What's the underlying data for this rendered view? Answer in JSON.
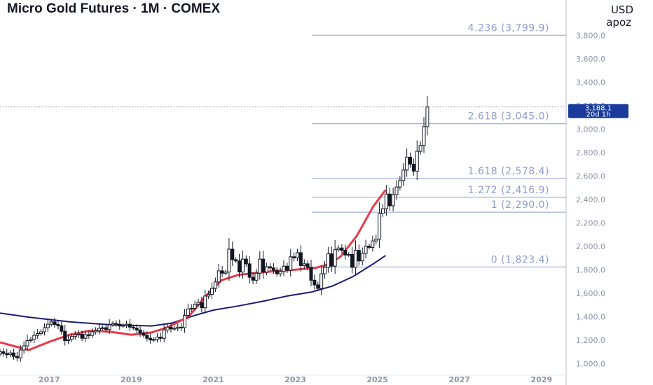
{
  "header": {
    "title": "Micro Gold Futures · 1M · COMEX",
    "currency": "USD",
    "user": "apoz"
  },
  "price_label": {
    "price": "3,188.1",
    "countdown": "20d 1h"
  },
  "colors": {
    "up": "#131722",
    "ema_fast": "#e8394a",
    "ema_slow": "#1c1a7a",
    "fib": "#8e9ccf",
    "price_tag": "#1a3b9c",
    "grid_text": "#8c93a8"
  },
  "chart_data": {
    "type": "candlestick",
    "title": "Micro Gold Futures · 1M · COMEX",
    "y_axis": {
      "min": 900,
      "max": 4100,
      "ticks": [
        "1,000.0",
        "1,200.0",
        "1,400.0",
        "1,600.0",
        "1,800.0",
        "2,000.0",
        "2,200.0",
        "2,400.0",
        "2,600.0",
        "2,800.0",
        "3,000.0",
        "3,200.0",
        "3,400.0",
        "3,600.0",
        "3,800.0"
      ],
      "tick_values": [
        1000,
        1200,
        1400,
        1600,
        1800,
        2000,
        2200,
        2400,
        2600,
        2800,
        3000,
        3200,
        3400,
        3600,
        3800
      ]
    },
    "x_axis": {
      "start": 2015.8,
      "end": 2029.6,
      "ticks": [
        "2017",
        "2019",
        "2021",
        "2023",
        "2025",
        "2027",
        "2029"
      ],
      "tick_values": [
        2017,
        2019,
        2021,
        2023,
        2025,
        2027,
        2029
      ]
    },
    "current_price": 3188.1,
    "fibonacci": [
      {
        "label": "4.236 (3,799.9)",
        "value": 3799.9
      },
      {
        "label": "2.618 (3,045.0)",
        "value": 3045.0
      },
      {
        "label": "1.618 (2,578.4)",
        "value": 2578.4
      },
      {
        "label": "1.272 (2,416.9)",
        "value": 2416.9
      },
      {
        "label": "1 (2,290.0)",
        "value": 2290.0
      },
      {
        "label": "0 (1,823.4)",
        "value": 1823.4
      }
    ],
    "fib_start": 2023.4,
    "closes": [
      1100,
      1085,
      1075,
      1090,
      1060,
      1048,
      1115,
      1150,
      1195,
      1205,
      1240,
      1255,
      1270,
      1305,
      1335,
      1355,
      1332,
      1322,
      1275,
      1195,
      1205,
      1230,
      1245,
      1250,
      1215,
      1245,
      1240,
      1270,
      1280,
      1300,
      1305,
      1290,
      1330,
      1340,
      1335,
      1320,
      1325,
      1335,
      1310,
      1302,
      1285,
      1260,
      1240,
      1215,
      1200,
      1205,
      1225,
      1215,
      1285,
      1310,
      1295,
      1300,
      1310,
      1305,
      1410,
      1465,
      1470,
      1505,
      1520,
      1475,
      1575,
      1590,
      1640,
      1695,
      1790,
      1770,
      1780,
      1975,
      1885,
      1875,
      1780,
      1890,
      1850,
      1735,
      1710,
      1770,
      1890,
      1780,
      1825,
      1815,
      1795,
      1765,
      1785,
      1830,
      1795,
      1910,
      1900,
      1945,
      1835,
      1850,
      1820,
      1710,
      1670,
      1640,
      1765,
      1820,
      1935,
      1830,
      1970,
      1985,
      1965,
      1925,
      1930,
      1820,
      1965,
      1875,
      1940,
      2000,
      1990,
      2045,
      2060,
      2280,
      2320,
      2445,
      2345,
      2440,
      2505,
      2560,
      2650,
      2760,
      2700,
      2640,
      2810,
      2860,
      3020,
      3188
    ],
    "ema_fast": [
      {
        "x": 2015.8,
        "y": 1180
      },
      {
        "x": 2016.5,
        "y": 1115
      },
      {
        "x": 2017.0,
        "y": 1185
      },
      {
        "x": 2017.5,
        "y": 1245
      },
      {
        "x": 2018.0,
        "y": 1280
      },
      {
        "x": 2018.5,
        "y": 1270
      },
      {
        "x": 2019.0,
        "y": 1245
      },
      {
        "x": 2019.5,
        "y": 1265
      },
      {
        "x": 2019.9,
        "y": 1310
      },
      {
        "x": 2020.4,
        "y": 1400
      },
      {
        "x": 2020.8,
        "y": 1570
      },
      {
        "x": 2021.2,
        "y": 1710
      },
      {
        "x": 2021.6,
        "y": 1755
      },
      {
        "x": 2022.1,
        "y": 1775
      },
      {
        "x": 2022.6,
        "y": 1790
      },
      {
        "x": 2023.0,
        "y": 1800
      },
      {
        "x": 2023.5,
        "y": 1815
      },
      {
        "x": 2023.8,
        "y": 1845
      },
      {
        "x": 2024.1,
        "y": 1910
      },
      {
        "x": 2024.5,
        "y": 2090
      },
      {
        "x": 2024.9,
        "y": 2340
      },
      {
        "x": 2025.2,
        "y": 2480
      }
    ],
    "ema_slow": [
      {
        "x": 2015.8,
        "y": 1430
      },
      {
        "x": 2016.5,
        "y": 1395
      },
      {
        "x": 2017.5,
        "y": 1355
      },
      {
        "x": 2018.5,
        "y": 1330
      },
      {
        "x": 2019.5,
        "y": 1320
      },
      {
        "x": 2020.0,
        "y": 1345
      },
      {
        "x": 2020.5,
        "y": 1405
      },
      {
        "x": 2021.0,
        "y": 1455
      },
      {
        "x": 2021.6,
        "y": 1490
      },
      {
        "x": 2022.2,
        "y": 1530
      },
      {
        "x": 2022.8,
        "y": 1575
      },
      {
        "x": 2023.4,
        "y": 1610
      },
      {
        "x": 2023.9,
        "y": 1660
      },
      {
        "x": 2024.4,
        "y": 1740
      },
      {
        "x": 2024.9,
        "y": 1850
      },
      {
        "x": 2025.2,
        "y": 1920
      }
    ]
  }
}
